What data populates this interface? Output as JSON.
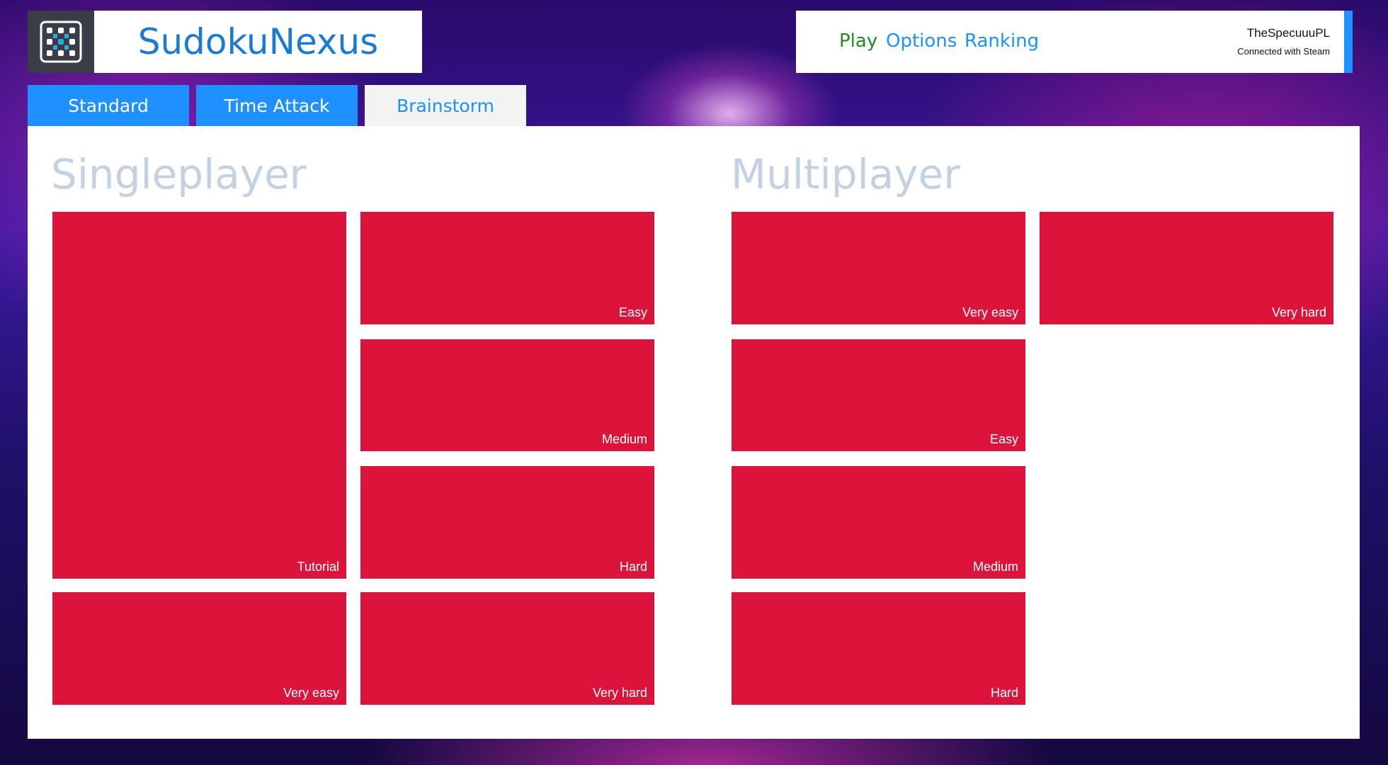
{
  "app": {
    "title": "SudokuNexus",
    "logo_icon": "sudoku-grid-icon"
  },
  "nav": {
    "play": "Play",
    "options": "Options",
    "ranking": "Ranking",
    "active": "Play",
    "active_color": "#228b22"
  },
  "user": {
    "name": "TheSpecuuuPL",
    "status": "Connected with Steam"
  },
  "tabs": [
    {
      "label": "Standard"
    },
    {
      "label": "Time Attack"
    },
    {
      "label": "Brainstorm",
      "active": true
    }
  ],
  "colors": {
    "accent": "#1e90ff",
    "tile": "#dc143c",
    "heading": "#c2d2e2"
  },
  "singleplayer": {
    "heading": "Singleplayer",
    "tiles": [
      "Tutorial",
      "Easy",
      "Medium",
      "Hard",
      "Very easy",
      "Very hard"
    ]
  },
  "multiplayer": {
    "heading": "Multiplayer",
    "tiles": [
      "Very easy",
      "Very hard",
      "Easy",
      "Medium",
      "Hard"
    ]
  }
}
